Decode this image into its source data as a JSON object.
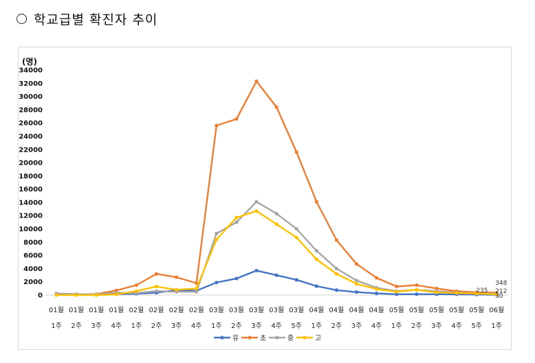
{
  "heading": {
    "title": "학교급별 확진자 추이"
  },
  "chart_data": {
    "type": "line",
    "unit_label": "(명)",
    "ylim": [
      0,
      34000
    ],
    "yticks": [
      0,
      2000,
      4000,
      6000,
      8000,
      10000,
      12000,
      14000,
      16000,
      18000,
      20000,
      22000,
      24000,
      26000,
      28000,
      30000,
      32000,
      34000
    ],
    "categories": [
      [
        "01월",
        "1주"
      ],
      [
        "01월",
        "2주"
      ],
      [
        "01월",
        "3주"
      ],
      [
        "01월",
        "4주"
      ],
      [
        "02월",
        "1주"
      ],
      [
        "02월",
        "2주"
      ],
      [
        "02월",
        "3주"
      ],
      [
        "02월",
        "4주"
      ],
      [
        "03월",
        "1주"
      ],
      [
        "03월",
        "2주"
      ],
      [
        "03월",
        "3주"
      ],
      [
        "03월",
        "4주"
      ],
      [
        "03월",
        "5주"
      ],
      [
        "04월",
        "1주"
      ],
      [
        "04월",
        "2주"
      ],
      [
        "04월",
        "3주"
      ],
      [
        "04월",
        "4주"
      ],
      [
        "05월",
        "1주"
      ],
      [
        "05월",
        "2주"
      ],
      [
        "05월",
        "3주"
      ],
      [
        "05월",
        "4주"
      ],
      [
        "05월",
        "5주"
      ],
      [
        "06월",
        "1주"
      ]
    ],
    "series": [
      {
        "name": "유",
        "color": "#4472C4",
        "values": [
          150,
          100,
          100,
          150,
          200,
          350,
          750,
          650,
          1900,
          2500,
          3700,
          3000,
          2300,
          1350,
          750,
          450,
          250,
          120,
          130,
          120,
          110,
          80,
          30
        ]
      },
      {
        "name": "초",
        "color": "#ED7D31",
        "values": [
          150,
          100,
          150,
          700,
          1500,
          3200,
          2700,
          1800,
          25600,
          26600,
          32300,
          28400,
          21600,
          14100,
          8300,
          4700,
          2600,
          1300,
          1500,
          1000,
          600,
          400,
          348
        ]
      },
      {
        "name": "중",
        "color": "#A5A5A5",
        "values": [
          250,
          150,
          100,
          350,
          300,
          600,
          500,
          500,
          9300,
          11000,
          14100,
          12300,
          10000,
          6700,
          4000,
          2200,
          1100,
          600,
          800,
          600,
          400,
          235,
          212
        ]
      },
      {
        "name": "고",
        "color": "#FFC000",
        "values": [
          0,
          0,
          0,
          100,
          600,
          1300,
          800,
          1000,
          8400,
          11700,
          12700,
          10700,
          8700,
          5400,
          3200,
          1700,
          900,
          500,
          800,
          400,
          300,
          235,
          100
        ]
      }
    ],
    "data_labels": [
      "348",
      "235",
      "212",
      "30"
    ],
    "legend_position": "bottom"
  }
}
